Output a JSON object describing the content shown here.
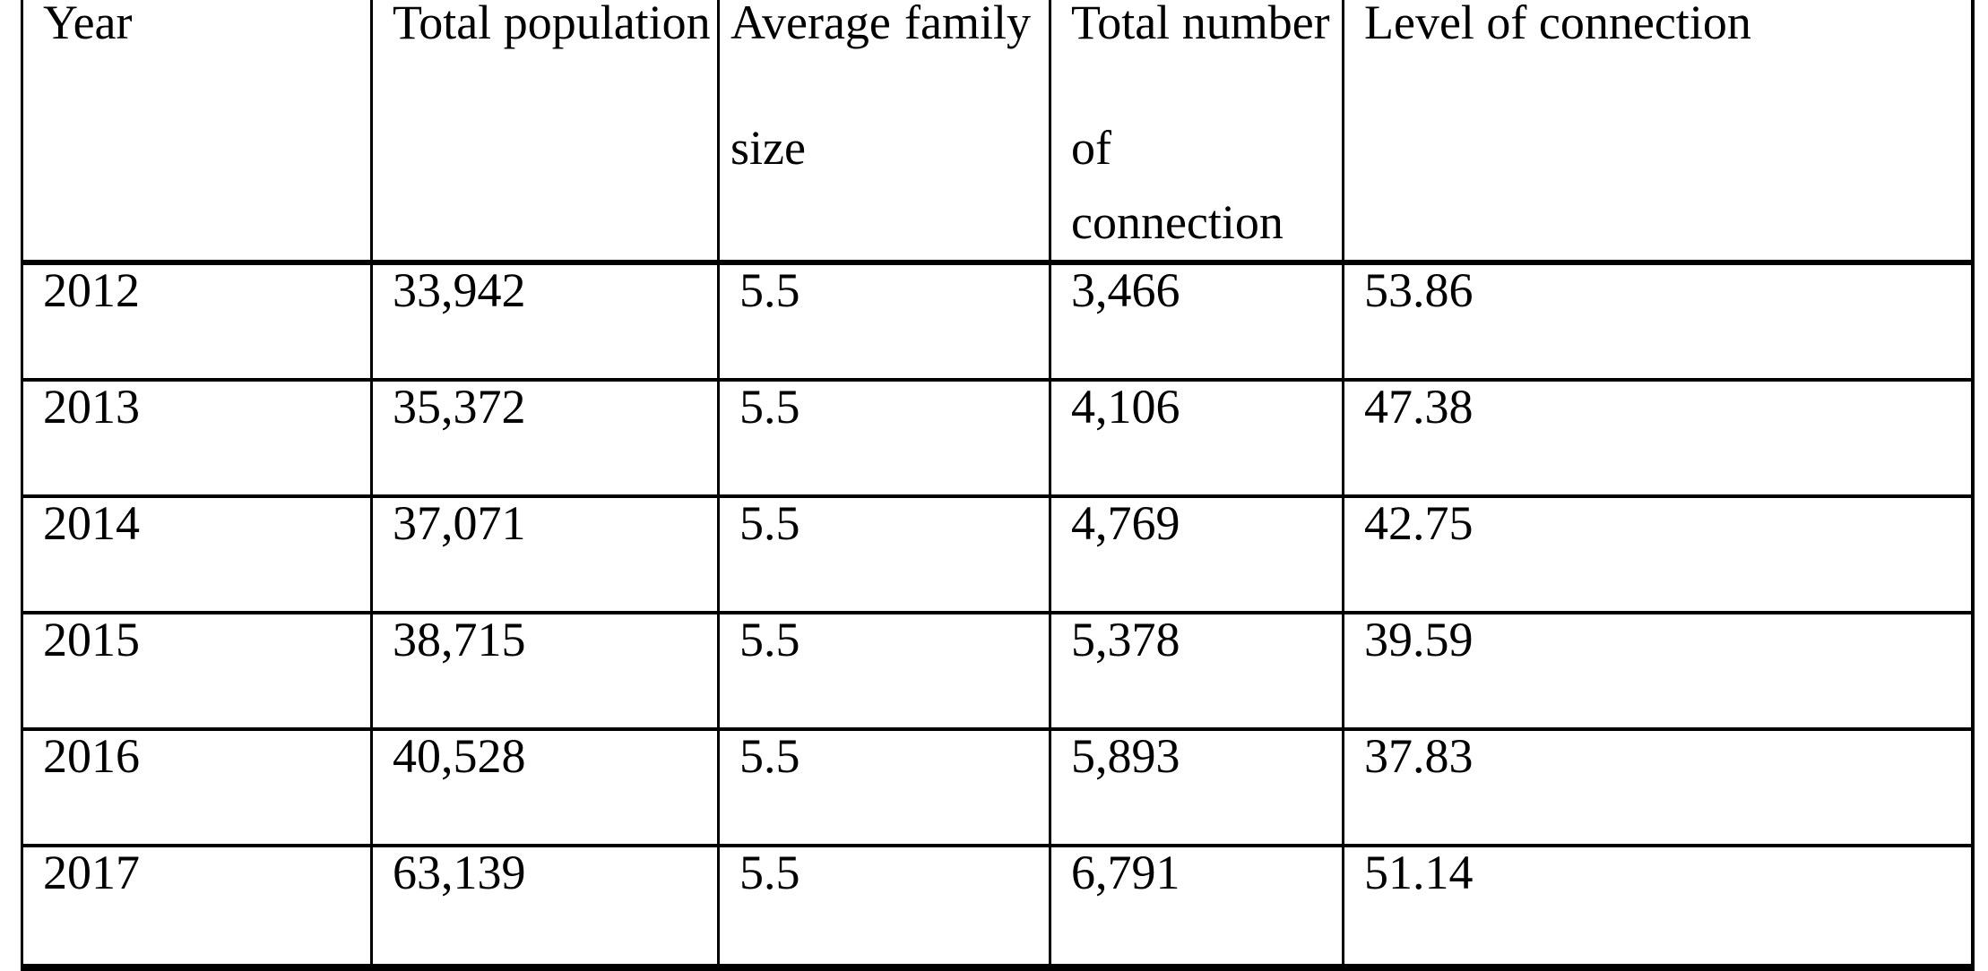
{
  "colors": {
    "border": "#000000",
    "text": "#000000",
    "background": "#ffffff"
  },
  "table": {
    "columns": [
      {
        "label": "Year",
        "lines": [
          "Year"
        ]
      },
      {
        "label": "Total population",
        "lines": [
          "Total population"
        ]
      },
      {
        "label": "Average family size",
        "lines": [
          "Average family",
          "size"
        ]
      },
      {
        "label": "Total number of connection",
        "lines": [
          "Total number",
          "of",
          "connection"
        ]
      },
      {
        "label": "Level of connection",
        "lines": [
          "Level of connection"
        ]
      }
    ],
    "rows": [
      [
        "2012",
        "33,942",
        "5.5",
        "3,466",
        "53.86"
      ],
      [
        "2013",
        "35,372",
        "5.5",
        "4,106",
        "47.38"
      ],
      [
        "2014",
        "37,071",
        "5.5",
        "4,769",
        "42.75"
      ],
      [
        "2015",
        "38,715",
        "5.5",
        "5,378",
        "39.59"
      ],
      [
        "2016",
        "40,528",
        "5.5",
        "5,893",
        "37.83"
      ],
      [
        "2017",
        "63,139",
        "5.5",
        "6,791",
        "51.14"
      ]
    ]
  },
  "chart_data": {
    "type": "table",
    "columns": [
      "Year",
      "Total population",
      "Average family size",
      "Total number of connection",
      "Level of connection"
    ],
    "rows": [
      [
        "2012",
        "33,942",
        "5.5",
        "3,466",
        "53.86"
      ],
      [
        "2013",
        "35,372",
        "5.5",
        "4,106",
        "47.38"
      ],
      [
        "2014",
        "37,071",
        "5.5",
        "4,769",
        "42.75"
      ],
      [
        "2015",
        "38,715",
        "5.5",
        "5,378",
        "39.59"
      ],
      [
        "2016",
        "40,528",
        "5.5",
        "5,893",
        "37.83"
      ],
      [
        "2017",
        "63,139",
        "5.5",
        "6,791",
        "51.14"
      ]
    ]
  }
}
